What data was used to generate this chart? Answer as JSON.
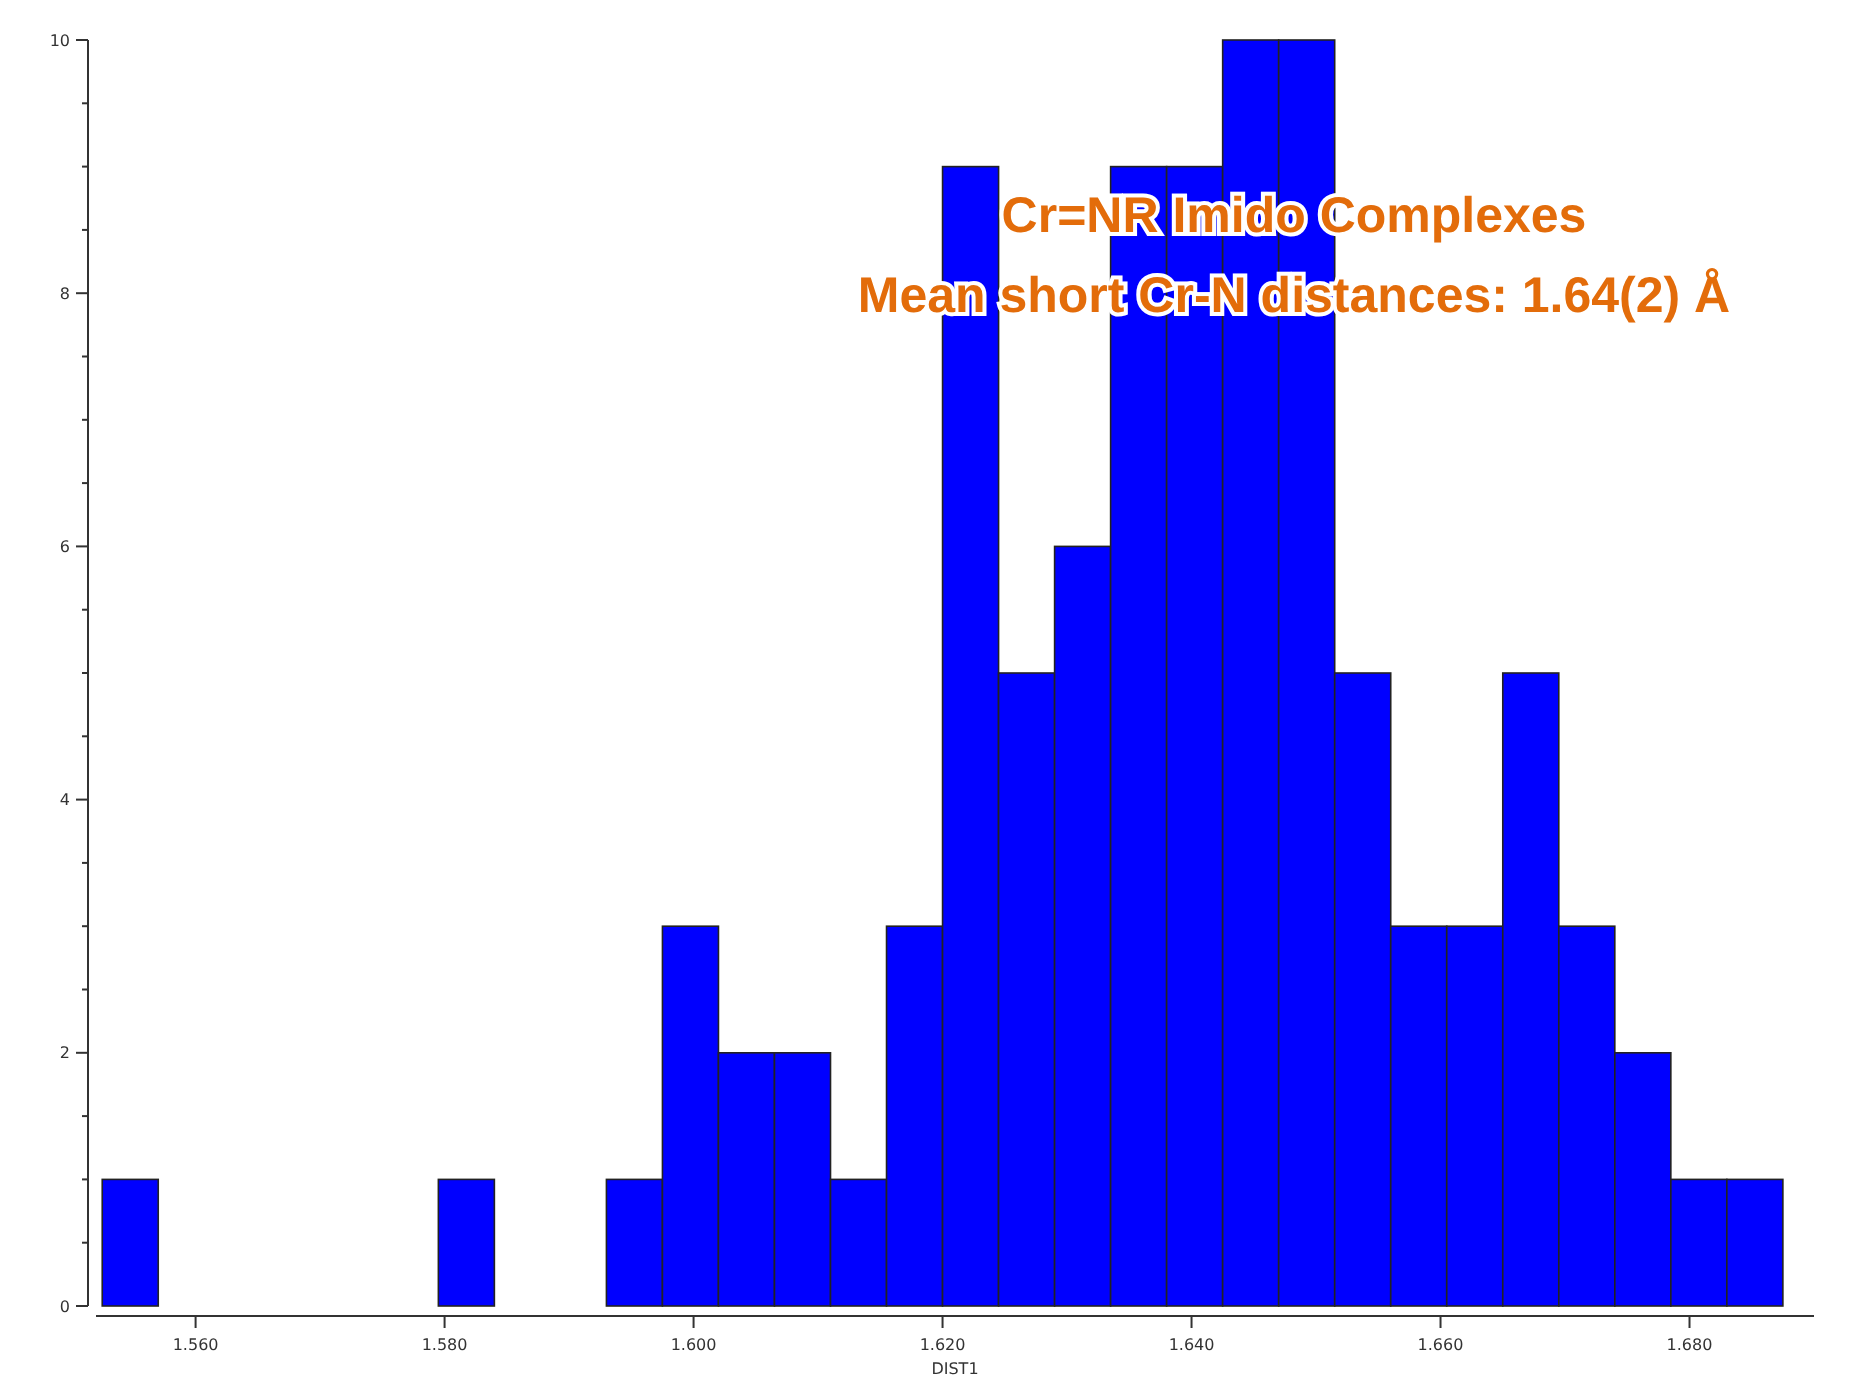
{
  "chart_data": {
    "type": "histogram",
    "xlabel": "DIST1",
    "bins": [
      1.5525,
      1.557,
      1.5615,
      1.566,
      1.5705,
      1.575,
      1.5795,
      1.584,
      1.5885,
      1.593,
      1.5975,
      1.602,
      1.6065,
      1.611,
      1.6155,
      1.62,
      1.6245,
      1.629,
      1.6335,
      1.638,
      1.6425,
      1.647,
      1.6515,
      1.656,
      1.6605,
      1.665,
      1.6695,
      1.674,
      1.6785,
      1.683,
      1.6875
    ],
    "values": [
      1,
      0,
      0,
      0,
      0,
      0,
      1,
      0,
      0,
      1,
      3,
      2,
      2,
      1,
      3,
      9,
      5,
      6,
      9,
      9,
      10,
      10,
      5,
      3,
      3,
      5,
      3,
      2,
      1,
      1
    ],
    "color": "#0000ff",
    "xlim": [
      1.552,
      1.69
    ],
    "xticks": [
      {
        "value": 1.56,
        "label": "1.560"
      },
      {
        "value": 1.58,
        "label": "1.580"
      },
      {
        "value": 1.6,
        "label": "1.600"
      },
      {
        "value": 1.62,
        "label": "1.620"
      },
      {
        "value": 1.64,
        "label": "1.640"
      },
      {
        "value": 1.66,
        "label": "1.660"
      },
      {
        "value": 1.68,
        "label": "1.680"
      }
    ],
    "ylim": [
      0,
      10
    ],
    "yticks": [
      0,
      {
        "value": 0.5,
        "label": null
      },
      {
        "value": 1,
        "label": null
      },
      {
        "value": 1.5,
        "label": null
      },
      2,
      {
        "value": 2.5,
        "label": null
      },
      {
        "value": 3,
        "label": null
      },
      {
        "value": 3.5,
        "label": null
      },
      4,
      {
        "value": 4.5,
        "label": null
      },
      {
        "value": 5,
        "label": null
      },
      {
        "value": 5.5,
        "label": null
      },
      6,
      {
        "value": 6.5,
        "label": null
      },
      {
        "value": 7,
        "label": null
      },
      {
        "value": 7.5,
        "label": null
      },
      8,
      {
        "value": 8.5,
        "label": null
      },
      {
        "value": 9,
        "label": null
      },
      {
        "value": 9.5,
        "label": null
      },
      10
    ],
    "grid": false,
    "annotations": [
      "Cr=NR Imido Complexes",
      "Mean short Cr-N distances: 1.64(2) Å"
    ]
  }
}
